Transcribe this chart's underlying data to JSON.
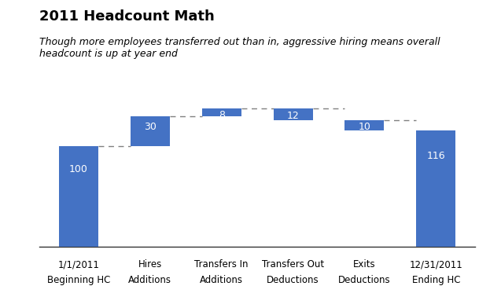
{
  "title": "2011 Headcount Math",
  "subtitle": "Though more employees transferred out than in, aggressive hiring means overall\nheadcount is up at year end",
  "bar_color": "#4472C4",
  "categories": [
    [
      "1/1/2011",
      "Beginning HC"
    ],
    [
      "Hires",
      "Additions"
    ],
    [
      "Transfers In",
      "Additions"
    ],
    [
      "Transfers Out",
      "Deductions"
    ],
    [
      "Exits",
      "Deductions"
    ],
    [
      "12/31/2011",
      "Ending HC"
    ]
  ],
  "values": [
    100,
    30,
    8,
    -12,
    -10,
    116
  ],
  "bases": [
    0,
    100,
    130,
    138,
    126,
    0
  ],
  "is_total": [
    true,
    false,
    false,
    false,
    false,
    true
  ],
  "bar_labels": [
    "100",
    "30",
    "8",
    "12",
    "10",
    "116"
  ],
  "ylim": [
    0,
    160
  ],
  "background_color": "#ffffff",
  "dashed_line_color": "#808080"
}
